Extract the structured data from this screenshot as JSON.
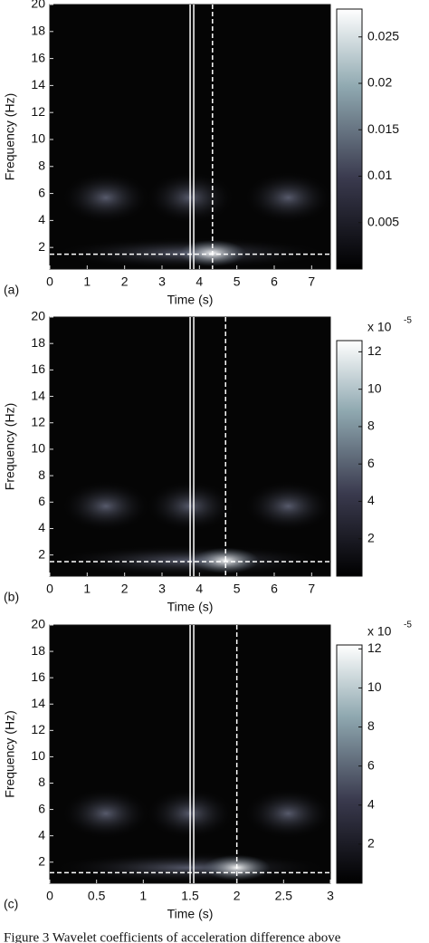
{
  "chart_data": [
    {
      "type": "heatmap",
      "panel_label": "(a)",
      "xlabel": "Time (s)",
      "ylabel": "Frequency (Hz)",
      "xlim": [
        0,
        7.5
      ],
      "xticks": [
        0,
        1,
        2,
        3,
        4,
        5,
        6,
        7
      ],
      "ylim": [
        0.4,
        20
      ],
      "yticks": [
        2,
        4,
        6,
        8,
        10,
        12,
        14,
        16,
        18,
        20
      ],
      "clim": [
        0,
        0.028
      ],
      "cticks": [
        0.005,
        0.01,
        0.015,
        0.02,
        0.025
      ],
      "markers": {
        "solid_x": 3.8,
        "dashed_x": 4.35,
        "dashed_y": 1.5
      }
    },
    {
      "type": "heatmap",
      "panel_label": "(b)",
      "xlabel": "Time (s)",
      "ylabel": "Frequency (Hz)",
      "xlim": [
        0,
        7.5
      ],
      "xticks": [
        0,
        1,
        2,
        3,
        4,
        5,
        6,
        7
      ],
      "ylim": [
        0.4,
        20
      ],
      "yticks": [
        2,
        4,
        6,
        8,
        10,
        12,
        14,
        16,
        18,
        20
      ],
      "clim": [
        0,
        12.6
      ],
      "cticks": [
        2,
        4,
        6,
        8,
        10,
        12
      ],
      "scale_label": {
        "base": "x 10",
        "exponent": "-5"
      },
      "markers": {
        "solid_x": 3.8,
        "dashed_x": 4.7,
        "dashed_y": 1.5
      }
    },
    {
      "type": "heatmap",
      "panel_label": "(c)",
      "xlabel": "Time (s)",
      "ylabel": "Frequency (Hz)",
      "xlim": [
        0,
        3
      ],
      "xticks": [
        0,
        0.5,
        1,
        1.5,
        2,
        2.5,
        3
      ],
      "ylim": [
        0.4,
        20
      ],
      "yticks": [
        2,
        4,
        6,
        8,
        10,
        12,
        14,
        16,
        18,
        20
      ],
      "clim": [
        0,
        12.2
      ],
      "cticks": [
        2,
        4,
        6,
        8,
        10,
        12
      ],
      "scale_label": {
        "base": "x 10",
        "exponent": "-5"
      },
      "markers": {
        "solid_x": 1.52,
        "dashed_x": 2.0,
        "dashed_y": 1.2
      }
    }
  ],
  "caption": "Figure 3 Wavelet coefficients of acceleration difference above"
}
